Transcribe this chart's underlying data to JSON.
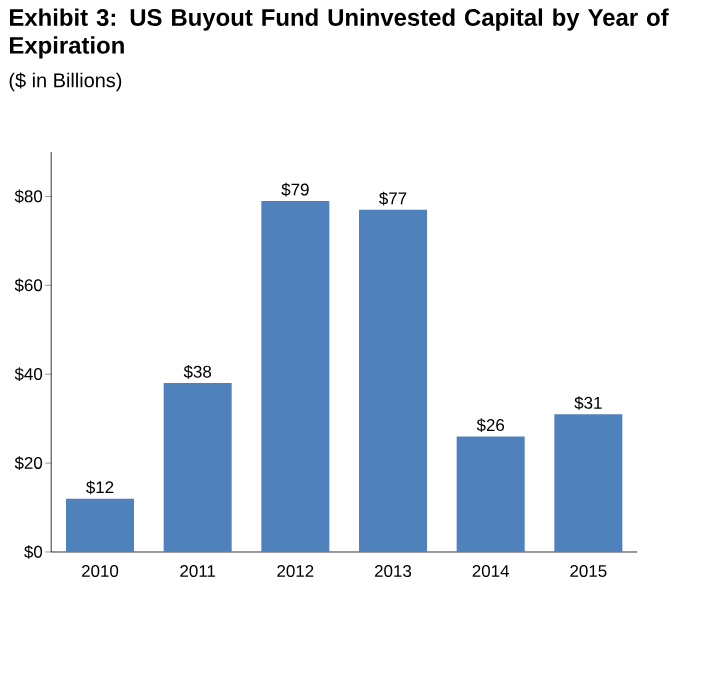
{
  "chart_data": {
    "type": "bar",
    "title": "Exhibit 3: US Buyout Fund Uninvested Capital by Year of Expiration",
    "subtitle": "($ in Billions)",
    "categories": [
      "2010",
      "2011",
      "2012",
      "2013",
      "2014",
      "2015"
    ],
    "values": [
      12,
      38,
      79,
      77,
      26,
      31
    ],
    "value_labels": [
      "$12",
      "$38",
      "$79",
      "$77",
      "$26",
      "$31"
    ],
    "color": "#4f81bd",
    "ylim": [
      0,
      90
    ],
    "yticks": [
      {
        "value": 0,
        "label": "$0"
      },
      {
        "value": 20,
        "label": "$20"
      },
      {
        "value": 40,
        "label": "$40"
      },
      {
        "value": 60,
        "label": "$60"
      },
      {
        "value": 80,
        "label": "$80"
      }
    ],
    "grid": false
  }
}
